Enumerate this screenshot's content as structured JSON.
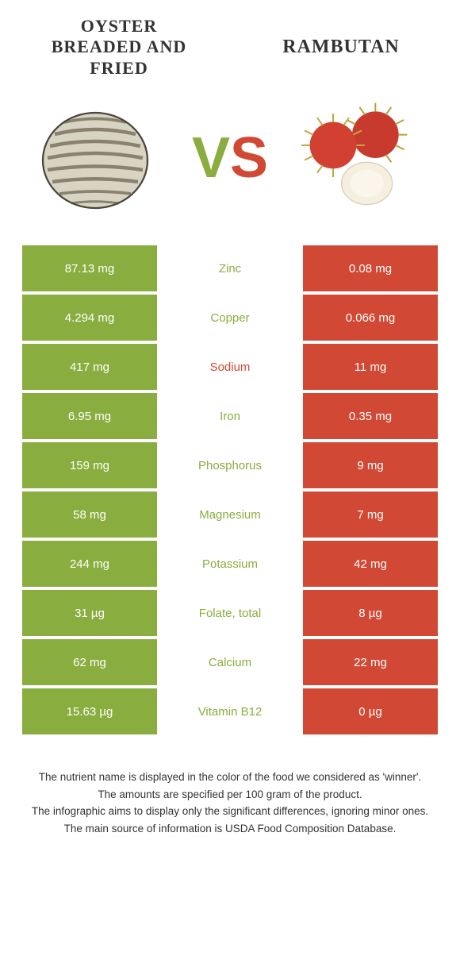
{
  "foods": {
    "left": {
      "name": "Oyster breaded and fried",
      "color": "#8aad3f"
    },
    "right": {
      "name": "Rambutan",
      "color": "#d14934"
    }
  },
  "vs_text": {
    "v": "V",
    "s": "S"
  },
  "colors": {
    "left_bg": "#8aad3f",
    "right_bg": "#d14934",
    "text_dark": "#333333",
    "cell_text": "#ffffff"
  },
  "rows": [
    {
      "left": "87.13 mg",
      "nutrient": "Zinc",
      "right": "0.08 mg",
      "winner": "left"
    },
    {
      "left": "4.294 mg",
      "nutrient": "Copper",
      "right": "0.066 mg",
      "winner": "left"
    },
    {
      "left": "417 mg",
      "nutrient": "Sodium",
      "right": "11 mg",
      "winner": "right"
    },
    {
      "left": "6.95 mg",
      "nutrient": "Iron",
      "right": "0.35 mg",
      "winner": "left"
    },
    {
      "left": "159 mg",
      "nutrient": "Phosphorus",
      "right": "9 mg",
      "winner": "left"
    },
    {
      "left": "58 mg",
      "nutrient": "Magnesium",
      "right": "7 mg",
      "winner": "left"
    },
    {
      "left": "244 mg",
      "nutrient": "Potassium",
      "right": "42 mg",
      "winner": "left"
    },
    {
      "left": "31 µg",
      "nutrient": "Folate, total",
      "right": "8 µg",
      "winner": "left"
    },
    {
      "left": "62 mg",
      "nutrient": "Calcium",
      "right": "22 mg",
      "winner": "left"
    },
    {
      "left": "15.63 µg",
      "nutrient": "Vitamin B12",
      "right": "0 µg",
      "winner": "left"
    }
  ],
  "footer": [
    "The nutrient name is displayed in the color of the food we considered as 'winner'.",
    "The amounts are specified per 100 gram of the product.",
    "The infographic aims to display only the significant differences, ignoring minor ones.",
    "The main source of information is USDA Food Composition Database."
  ]
}
